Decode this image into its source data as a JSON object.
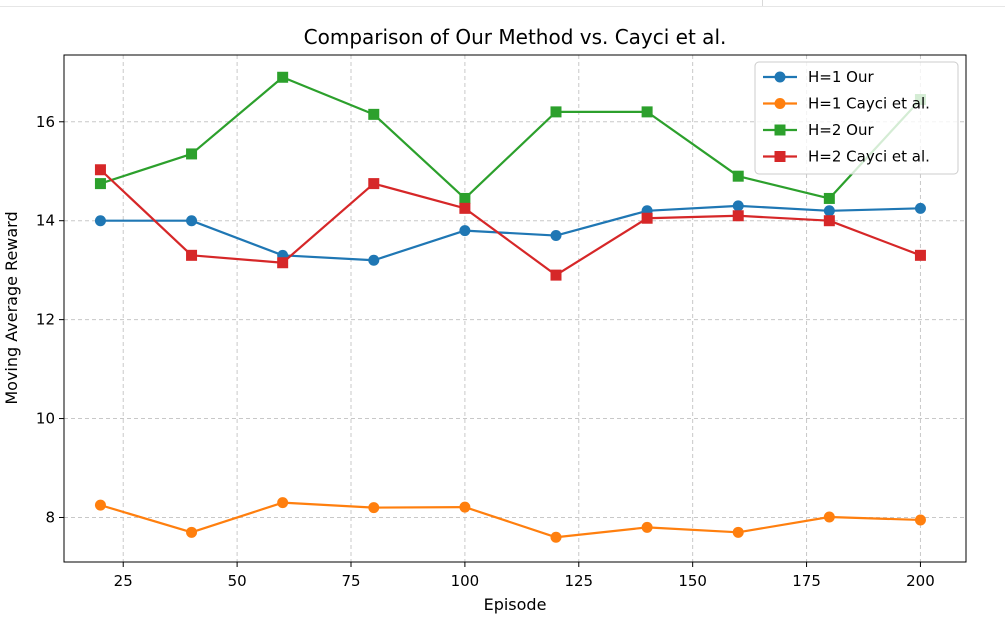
{
  "chart_data": {
    "type": "line",
    "title": "Comparison of Our Method vs. Cayci et al.",
    "xlabel": "Episode",
    "ylabel": "Moving Average Reward",
    "xlim": [
      12,
      210
    ],
    "ylim": [
      7.1,
      17.35
    ],
    "xticks": [
      25,
      50,
      75,
      100,
      125,
      150,
      175,
      200
    ],
    "yticks": [
      8,
      10,
      12,
      14,
      16
    ],
    "grid": true,
    "legend_position": "top-right",
    "x": [
      20,
      40,
      60,
      80,
      100,
      120,
      140,
      160,
      180,
      200
    ],
    "series": [
      {
        "name": "H=1 Our",
        "color": "#1f77b4",
        "marker": "circle",
        "values": [
          14.0,
          14.0,
          13.3,
          13.2,
          13.8,
          13.7,
          14.2,
          14.3,
          14.2,
          14.25
        ]
      },
      {
        "name": "H=1 Cayci et al.",
        "color": "#ff7f0e",
        "marker": "circle",
        "values": [
          8.25,
          7.7,
          8.3,
          8.2,
          8.21,
          7.6,
          7.8,
          7.7,
          8.01,
          7.95
        ]
      },
      {
        "name": "H=2 Our",
        "color": "#2ca02c",
        "marker": "square",
        "values": [
          14.75,
          15.35,
          16.9,
          16.15,
          14.45,
          16.2,
          16.2,
          14.9,
          14.45,
          16.45
        ]
      },
      {
        "name": "H=2 Cayci et al.",
        "color": "#d62728",
        "marker": "square",
        "values": [
          15.03,
          13.3,
          13.15,
          14.75,
          14.25,
          12.9,
          14.05,
          14.1,
          14.0,
          13.3
        ]
      }
    ]
  }
}
